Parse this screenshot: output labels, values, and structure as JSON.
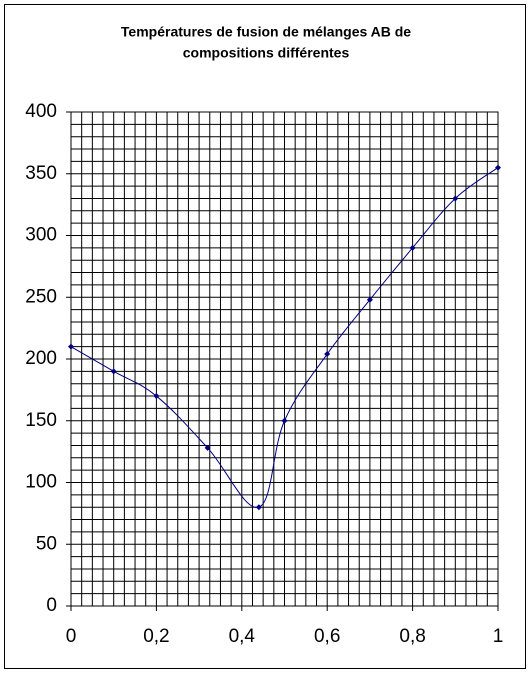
{
  "chart_data": {
    "type": "line",
    "title": [
      "Températures de fusion de mélanges AB de",
      "compositions différentes"
    ],
    "x": [
      0,
      0.1,
      0.2,
      0.32,
      0.44,
      0.5,
      0.6,
      0.7,
      0.8,
      0.9,
      1
    ],
    "values": [
      210,
      190,
      170,
      128,
      80,
      150,
      204,
      248,
      290,
      330,
      355
    ],
    "color": "#000080",
    "xlim": [
      0,
      1
    ],
    "xticks": [
      0,
      {
        "value": 0.2,
        "label": "0,2"
      },
      {
        "value": 0.4,
        "label": "0,4"
      },
      {
        "value": 0.6,
        "label": "0,6"
      },
      {
        "value": 0.8,
        "label": "0,8"
      },
      1
    ],
    "ylim": [
      0,
      400
    ],
    "yticks": [
      0,
      50,
      100,
      150,
      200,
      250,
      300,
      350,
      400
    ],
    "grid": true
  }
}
